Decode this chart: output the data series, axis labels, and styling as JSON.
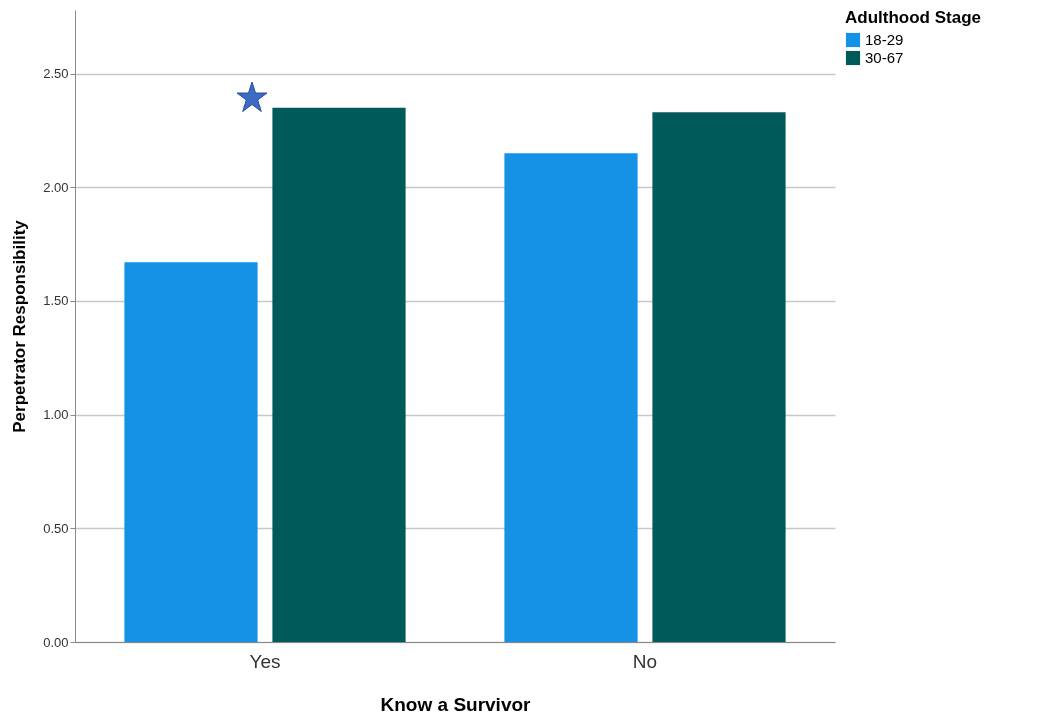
{
  "chart_data": {
    "type": "bar",
    "xlabel": "Know a Survivor",
    "ylabel": "Perpetrator Responsibility",
    "legend_title": "Adulthood Stage",
    "categories": [
      "Yes",
      "No"
    ],
    "series": [
      {
        "name": "18-29",
        "color": "#1591e6",
        "values": [
          1.67,
          2.15
        ]
      },
      {
        "name": "30-67",
        "color": "#005a5a",
        "values": [
          2.35,
          2.33
        ]
      }
    ],
    "ylim": [
      0,
      2.78
    ],
    "yticks": [
      {
        "value": 0,
        "label": "0.00"
      },
      {
        "value": 0.5,
        "label": "0.50"
      },
      {
        "value": 1,
        "label": "1.00"
      },
      {
        "value": 1.5,
        "label": "1.50"
      },
      {
        "value": 2,
        "label": "2.00"
      },
      {
        "value": 2.5,
        "label": "2.50"
      }
    ],
    "grid": "y",
    "legend": "top right"
  }
}
